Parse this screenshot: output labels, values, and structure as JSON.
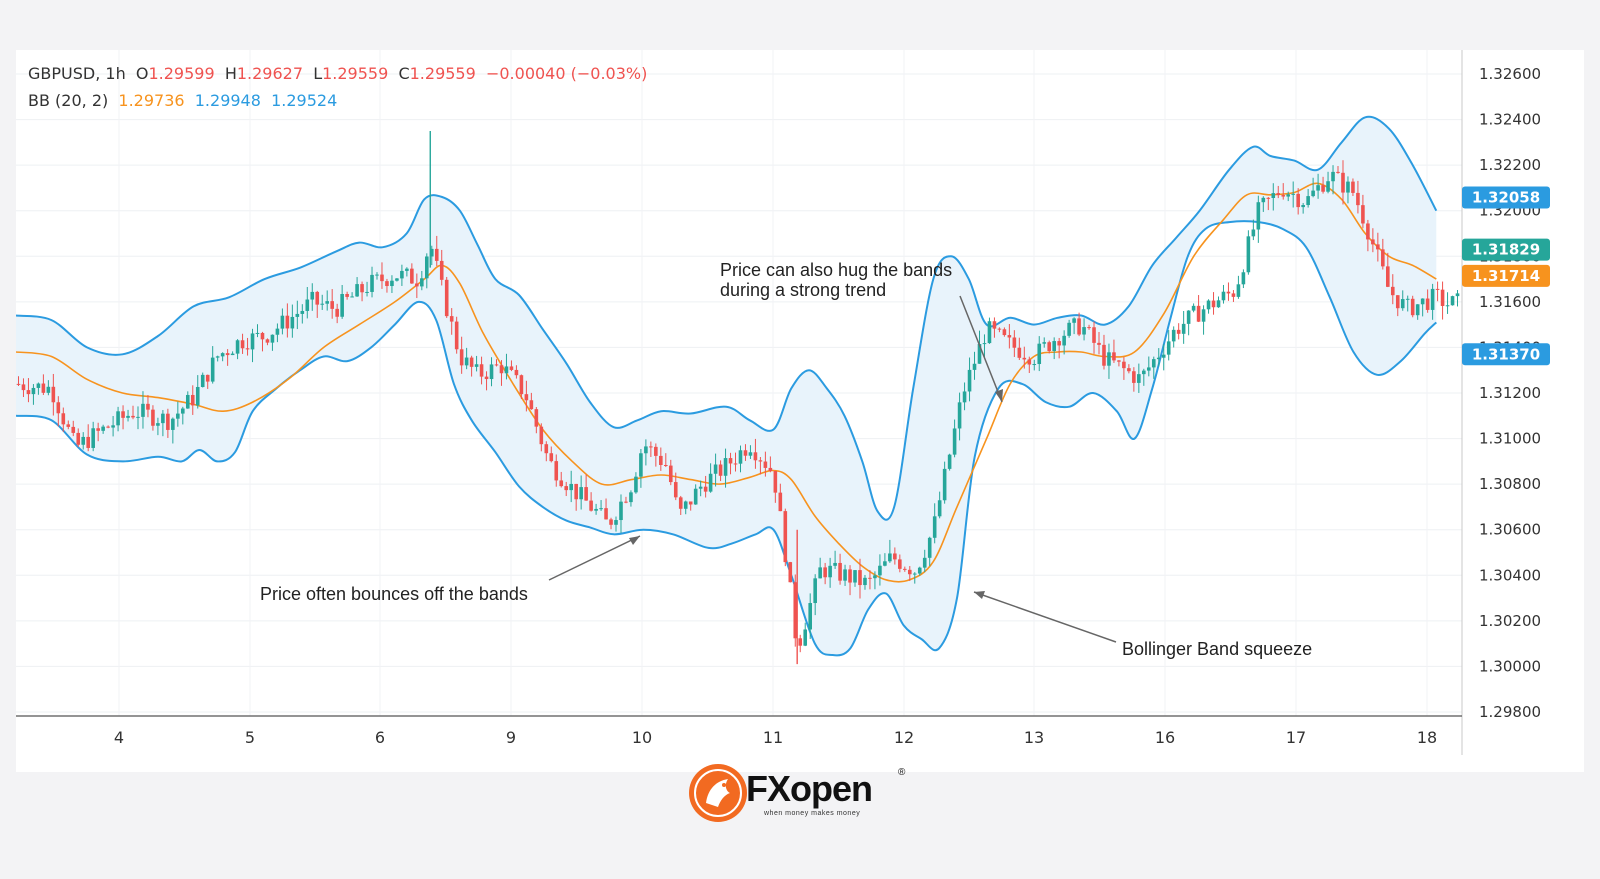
{
  "header": {
    "symbol": "GBPUSD, 1h",
    "o_label": "O",
    "o_value": "1.29599",
    "h_label": "H",
    "h_value": "1.29627",
    "l_label": "L",
    "l_value": "1.29559",
    "c_label": "C",
    "c_value": "1.29559",
    "change": "−0.00040 (−0.03%)",
    "bb_label": "BB (20, 2)",
    "bb_basis": "1.29736",
    "bb_upper": "1.29948",
    "bb_lower": "1.29524"
  },
  "price_tags": [
    {
      "value": 1.32058,
      "label": "1.32058",
      "color": "#2b9be0"
    },
    {
      "value": 1.31829,
      "label": "1.31829",
      "color": "#26a69a"
    },
    {
      "value": 1.31714,
      "label": "1.31714",
      "color": "#f7931e"
    },
    {
      "value": 1.3137,
      "label": "1.31370",
      "color": "#2b9be0"
    }
  ],
  "annotations": {
    "bounce": "Price often bounces off the bands",
    "hug_line1": "Price can also hug the bands",
    "hug_line2": "during a strong trend",
    "squeeze": "Bollinger Band squeeze"
  },
  "logo": {
    "brand": "FXopen",
    "tagline": "when money makes money",
    "registered": "®"
  },
  "colors": {
    "up": "#26a69a",
    "down": "#ef5350",
    "basis": "#f7931e",
    "band": "#2b9be0",
    "fill": "#e8f3fb"
  },
  "chart_data": {
    "type": "candlestick",
    "symbol": "GBPUSD",
    "timeframe": "1h",
    "ylim": [
      1.297,
      1.3275
    ],
    "y_ticks": [
      "1.32600",
      "1.32400",
      "1.32200",
      "1.32000",
      "1.31800",
      "1.31600",
      "1.31400",
      "1.31200",
      "1.31000",
      "1.30800",
      "1.30600",
      "1.30400",
      "1.30200",
      "1.30000",
      "1.29800"
    ],
    "x_ticks": [
      "4",
      "5",
      "6",
      "9",
      "10",
      "11",
      "12",
      "13",
      "16",
      "17",
      "18"
    ],
    "grid": true,
    "price_points": [
      [
        0,
        1.3124
      ],
      [
        0.3,
        1.3122
      ],
      [
        0.5,
        1.3096
      ],
      [
        0.8,
        1.3106
      ],
      [
        1.0,
        1.3112
      ],
      [
        1.3,
        1.3108
      ],
      [
        1.5,
        1.3118
      ],
      [
        1.7,
        1.3136
      ],
      [
        1.9,
        1.3143
      ],
      [
        2.1,
        1.3145
      ],
      [
        2.3,
        1.3152
      ],
      [
        2.5,
        1.316
      ],
      [
        2.7,
        1.3157
      ],
      [
        3.0,
        1.3168
      ],
      [
        3.2,
        1.3172
      ],
      [
        3.4,
        1.317
      ],
      [
        3.5,
        1.3186
      ],
      [
        3.6,
        1.3165
      ],
      [
        3.75,
        1.3136
      ],
      [
        3.9,
        1.3128
      ],
      [
        4.1,
        1.3132
      ],
      [
        4.3,
        1.312
      ],
      [
        4.5,
        1.309
      ],
      [
        4.7,
        1.3078
      ],
      [
        4.9,
        1.3068
      ],
      [
        5.0,
        1.3062
      ],
      [
        5.2,
        1.308
      ],
      [
        5.3,
        1.3098
      ],
      [
        5.5,
        1.3088
      ],
      [
        5.6,
        1.3066
      ],
      [
        5.8,
        1.308
      ],
      [
        6.0,
        1.3088
      ],
      [
        6.2,
        1.3098
      ],
      [
        6.4,
        1.3085
      ],
      [
        6.5,
        1.305
      ],
      [
        6.6,
        1.3008
      ],
      [
        6.8,
        1.3043
      ],
      [
        7.0,
        1.304
      ],
      [
        7.2,
        1.3036
      ],
      [
        7.4,
        1.3048
      ],
      [
        7.6,
        1.3042
      ],
      [
        7.75,
        1.306
      ],
      [
        8.0,
        1.312
      ],
      [
        8.2,
        1.3148
      ],
      [
        8.4,
        1.3141
      ],
      [
        8.6,
        1.3136
      ],
      [
        8.8,
        1.3145
      ],
      [
        9.0,
        1.315
      ],
      [
        9.2,
        1.3135
      ],
      [
        9.5,
        1.3126
      ],
      [
        9.8,
        1.3148
      ],
      [
        10.0,
        1.3156
      ],
      [
        10.3,
        1.3165
      ],
      [
        10.5,
        1.32
      ],
      [
        10.7,
        1.321
      ],
      [
        10.9,
        1.3204
      ],
      [
        11.1,
        1.3216
      ],
      [
        11.3,
        1.3208
      ],
      [
        11.4,
        1.3195
      ],
      [
        11.6,
        1.3165
      ],
      [
        11.75,
        1.3157
      ],
      [
        12.0,
        1.3162
      ],
      [
        12.1,
        1.3159
      ],
      [
        12.2,
        1.316
      ]
    ],
    "bb_upper": [
      [
        0,
        1.3154
      ],
      [
        0.3,
        1.3152
      ],
      [
        0.6,
        1.314
      ],
      [
        0.9,
        1.3137
      ],
      [
        1.2,
        1.3145
      ],
      [
        1.5,
        1.3158
      ],
      [
        1.8,
        1.3162
      ],
      [
        2.1,
        1.317
      ],
      [
        2.4,
        1.3175
      ],
      [
        2.7,
        1.3182
      ],
      [
        2.9,
        1.3186
      ],
      [
        3.1,
        1.3184
      ],
      [
        3.3,
        1.319
      ],
      [
        3.45,
        1.3205
      ],
      [
        3.6,
        1.3206
      ],
      [
        3.75,
        1.32
      ],
      [
        3.9,
        1.3185
      ],
      [
        4.05,
        1.317
      ],
      [
        4.25,
        1.3163
      ],
      [
        4.45,
        1.3148
      ],
      [
        4.65,
        1.3133
      ],
      [
        4.85,
        1.3116
      ],
      [
        5.05,
        1.3105
      ],
      [
        5.25,
        1.3108
      ],
      [
        5.45,
        1.3112
      ],
      [
        5.7,
        1.3111
      ],
      [
        6.0,
        1.3114
      ],
      [
        6.2,
        1.3108
      ],
      [
        6.4,
        1.3104
      ],
      [
        6.55,
        1.3122
      ],
      [
        6.7,
        1.313
      ],
      [
        6.85,
        1.3122
      ],
      [
        7.0,
        1.311
      ],
      [
        7.15,
        1.309
      ],
      [
        7.28,
        1.3068
      ],
      [
        7.42,
        1.307
      ],
      [
        7.58,
        1.3122
      ],
      [
        7.75,
        1.317
      ],
      [
        7.9,
        1.318
      ],
      [
        8.05,
        1.317
      ],
      [
        8.2,
        1.315
      ],
      [
        8.4,
        1.3153
      ],
      [
        8.6,
        1.315
      ],
      [
        8.8,
        1.3153
      ],
      [
        9.0,
        1.3154
      ],
      [
        9.2,
        1.315
      ],
      [
        9.4,
        1.3158
      ],
      [
        9.6,
        1.3176
      ],
      [
        9.8,
        1.3188
      ],
      [
        10.0,
        1.32
      ],
      [
        10.25,
        1.3218
      ],
      [
        10.45,
        1.3228
      ],
      [
        10.6,
        1.3224
      ],
      [
        10.8,
        1.3222
      ],
      [
        11.0,
        1.3218
      ],
      [
        11.2,
        1.323
      ],
      [
        11.4,
        1.3241
      ],
      [
        11.6,
        1.3236
      ],
      [
        11.8,
        1.322
      ],
      [
        12.0,
        1.32
      ]
    ],
    "bb_lower": [
      [
        0,
        1.311
      ],
      [
        0.3,
        1.3108
      ],
      [
        0.6,
        1.3093
      ],
      [
        0.9,
        1.309
      ],
      [
        1.2,
        1.3092
      ],
      [
        1.4,
        1.309
      ],
      [
        1.55,
        1.3095
      ],
      [
        1.7,
        1.309
      ],
      [
        1.85,
        1.3094
      ],
      [
        2.0,
        1.3112
      ],
      [
        2.2,
        1.3122
      ],
      [
        2.4,
        1.313
      ],
      [
        2.6,
        1.3136
      ],
      [
        2.8,
        1.3134
      ],
      [
        3.0,
        1.314
      ],
      [
        3.2,
        1.315
      ],
      [
        3.4,
        1.316
      ],
      [
        3.55,
        1.3152
      ],
      [
        3.7,
        1.3124
      ],
      [
        3.85,
        1.3108
      ],
      [
        4.05,
        1.3094
      ],
      [
        4.25,
        1.3079
      ],
      [
        4.45,
        1.307
      ],
      [
        4.65,
        1.3064
      ],
      [
        4.85,
        1.3061
      ],
      [
        5.05,
        1.3058
      ],
      [
        5.3,
        1.306
      ],
      [
        5.55,
        1.3058
      ],
      [
        5.85,
        1.3052
      ],
      [
        6.05,
        1.3054
      ],
      [
        6.25,
        1.3058
      ],
      [
        6.4,
        1.306
      ],
      [
        6.55,
        1.304
      ],
      [
        6.75,
        1.301
      ],
      [
        6.9,
        1.3005
      ],
      [
        7.05,
        1.3008
      ],
      [
        7.2,
        1.3025
      ],
      [
        7.35,
        1.3032
      ],
      [
        7.5,
        1.3018
      ],
      [
        7.65,
        1.3012
      ],
      [
        7.8,
        1.3008
      ],
      [
        7.95,
        1.303
      ],
      [
        8.1,
        1.3092
      ],
      [
        8.3,
        1.3122
      ],
      [
        8.5,
        1.3124
      ],
      [
        8.7,
        1.3116
      ],
      [
        8.9,
        1.3114
      ],
      [
        9.1,
        1.312
      ],
      [
        9.3,
        1.3112
      ],
      [
        9.45,
        1.31
      ],
      [
        9.6,
        1.3122
      ],
      [
        9.75,
        1.3152
      ],
      [
        9.9,
        1.318
      ],
      [
        10.05,
        1.3192
      ],
      [
        10.25,
        1.3195
      ],
      [
        10.5,
        1.3195
      ],
      [
        10.7,
        1.3192
      ],
      [
        10.9,
        1.3184
      ],
      [
        11.1,
        1.3162
      ],
      [
        11.3,
        1.3138
      ],
      [
        11.5,
        1.3128
      ],
      [
        11.7,
        1.3134
      ],
      [
        11.9,
        1.3146
      ],
      [
        12.0,
        1.3151
      ]
    ],
    "bb_basis": [
      [
        0,
        1.3138
      ],
      [
        0.3,
        1.3136
      ],
      [
        0.6,
        1.3126
      ],
      [
        0.9,
        1.312
      ],
      [
        1.2,
        1.3118
      ],
      [
        1.5,
        1.3115
      ],
      [
        1.75,
        1.3112
      ],
      [
        2.0,
        1.3116
      ],
      [
        2.3,
        1.3126
      ],
      [
        2.6,
        1.314
      ],
      [
        2.9,
        1.315
      ],
      [
        3.2,
        1.316
      ],
      [
        3.45,
        1.317
      ],
      [
        3.6,
        1.3176
      ],
      [
        3.75,
        1.3168
      ],
      [
        3.95,
        1.3146
      ],
      [
        4.2,
        1.3124
      ],
      [
        4.45,
        1.3104
      ],
      [
        4.7,
        1.309
      ],
      [
        4.95,
        1.308
      ],
      [
        5.2,
        1.3082
      ],
      [
        5.45,
        1.3084
      ],
      [
        5.7,
        1.3082
      ],
      [
        5.95,
        1.308
      ],
      [
        6.2,
        1.3083
      ],
      [
        6.4,
        1.3086
      ],
      [
        6.55,
        1.3082
      ],
      [
        6.75,
        1.3066
      ],
      [
        6.95,
        1.3054
      ],
      [
        7.15,
        1.3044
      ],
      [
        7.35,
        1.3038
      ],
      [
        7.55,
        1.3038
      ],
      [
        7.75,
        1.3046
      ],
      [
        7.95,
        1.307
      ],
      [
        8.2,
        1.31
      ],
      [
        8.4,
        1.3124
      ],
      [
        8.6,
        1.3136
      ],
      [
        8.8,
        1.3138
      ],
      [
        9.0,
        1.3138
      ],
      [
        9.2,
        1.3136
      ],
      [
        9.45,
        1.3138
      ],
      [
        9.7,
        1.3155
      ],
      [
        9.95,
        1.318
      ],
      [
        10.2,
        1.3196
      ],
      [
        10.4,
        1.3207
      ],
      [
        10.6,
        1.3207
      ],
      [
        10.8,
        1.3208
      ],
      [
        11.0,
        1.3212
      ],
      [
        11.2,
        1.3205
      ],
      [
        11.4,
        1.319
      ],
      [
        11.6,
        1.318
      ],
      [
        11.8,
        1.3176
      ],
      [
        12.0,
        1.317
      ]
    ]
  }
}
